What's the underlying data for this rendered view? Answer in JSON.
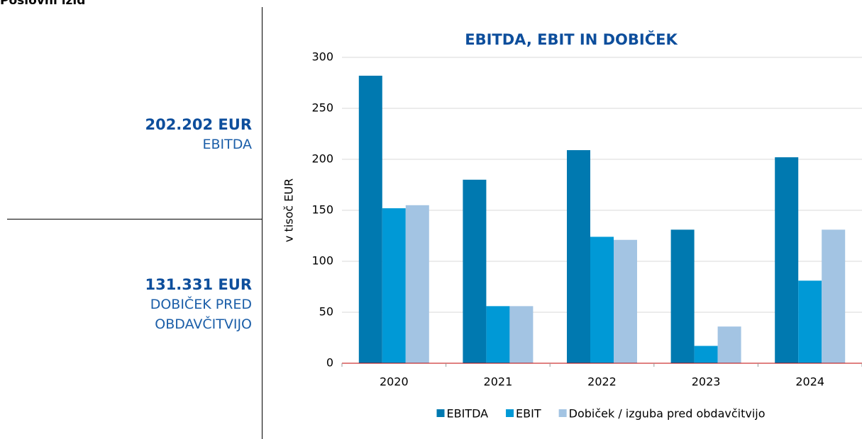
{
  "header": {
    "title": "Poslovni izid"
  },
  "kpis": [
    {
      "value": "202.202 EUR",
      "label": "EBITDA"
    },
    {
      "value": "131.331 EUR",
      "label": "DOBIČEK PRED OBDAVČITVIJO"
    }
  ],
  "chart_data": {
    "type": "bar",
    "title": "EBITDA, EBIT IN DOBIČEK",
    "y_label": "v tisoč EUR",
    "categories": [
      "2020",
      "2021",
      "2022",
      "2023",
      "2024"
    ],
    "series": [
      {
        "name": "EBITDA",
        "color": "#0079b0",
        "values": [
          282,
          180,
          209,
          131,
          202
        ]
      },
      {
        "name": "EBIT",
        "color": "#0099d6",
        "values": [
          152,
          56,
          124,
          17,
          81
        ]
      },
      {
        "name": "Dobiček / izguba pred obdavčitvijo",
        "color": "#a3c4e3",
        "values": [
          155,
          56,
          121,
          36,
          131
        ]
      }
    ],
    "ylim": [
      0,
      300
    ],
    "yticks": [
      0,
      50,
      100,
      150,
      200,
      250,
      300
    ],
    "grid": true
  }
}
